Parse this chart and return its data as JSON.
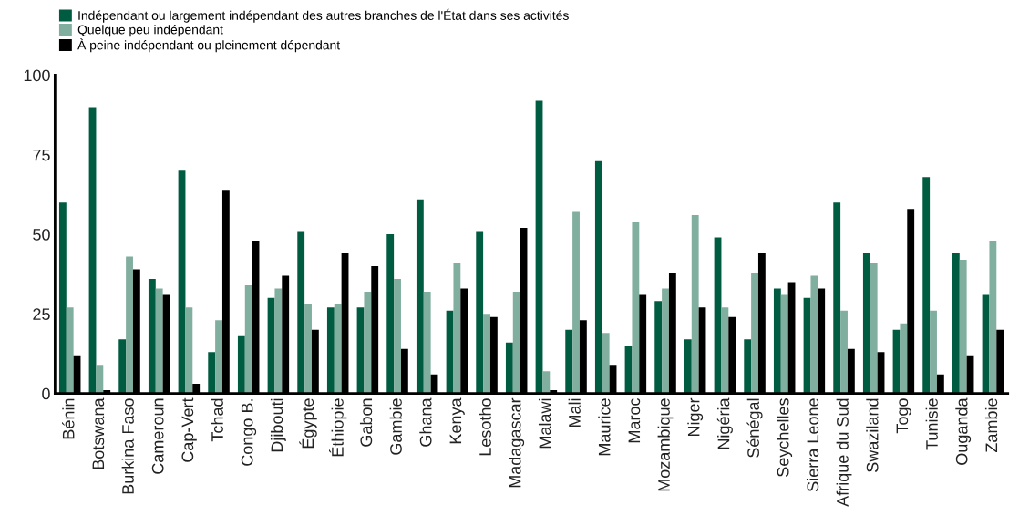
{
  "chart_data": {
    "type": "bar",
    "categories": [
      "Bénin",
      "Botswana",
      "Burkina Faso",
      "Cameroun",
      "Cap-Vert",
      "Tchad",
      "Congo B.",
      "Djibouti",
      "Égypte",
      "Éthiopie",
      "Gabon",
      "Gambie",
      "Ghana",
      "Kenya",
      "Lesotho",
      "Madagascar",
      "Malawi",
      "Mali",
      "Maurice",
      "Maroc",
      "Mozambique",
      "Niger",
      "Nigéria",
      "Sénégal",
      "Seychelles",
      "Sierra Leone",
      "Afrique du Sud",
      "Swaziland",
      "Togo",
      "Tunisie",
      "Ouganda",
      "Zambie"
    ],
    "series": [
      {
        "name": "Indépendant ou largement indépendant des autres branches de l'État dans ses activités",
        "color": "#005c40",
        "values": [
          60,
          90,
          17,
          36,
          70,
          13,
          18,
          30,
          51,
          27,
          27,
          50,
          61,
          26,
          51,
          16,
          92,
          20,
          73,
          15,
          29,
          17,
          49,
          17,
          33,
          30,
          60,
          44,
          20,
          68,
          44,
          31
        ]
      },
      {
        "name": "Quelque peu indépendant",
        "color": "#80ae9f",
        "values": [
          27,
          9,
          43,
          33,
          27,
          23,
          34,
          33,
          28,
          28,
          32,
          36,
          32,
          41,
          25,
          32,
          7,
          57,
          19,
          54,
          33,
          56,
          27,
          38,
          31,
          37,
          26,
          41,
          22,
          26,
          42,
          48
        ]
      },
      {
        "name": "À peine indépendant ou pleinement dépendant",
        "color": "#000000",
        "values": [
          12,
          1,
          39,
          31,
          3,
          64,
          48,
          37,
          20,
          44,
          40,
          14,
          6,
          33,
          24,
          52,
          1,
          23,
          9,
          31,
          38,
          27,
          24,
          44,
          35,
          33,
          14,
          13,
          58,
          6,
          12,
          20
        ]
      }
    ],
    "ylim": [
      0,
      100
    ],
    "yticks": [
      0,
      25,
      50,
      75,
      100
    ],
    "grid": false,
    "legend": "top left"
  }
}
